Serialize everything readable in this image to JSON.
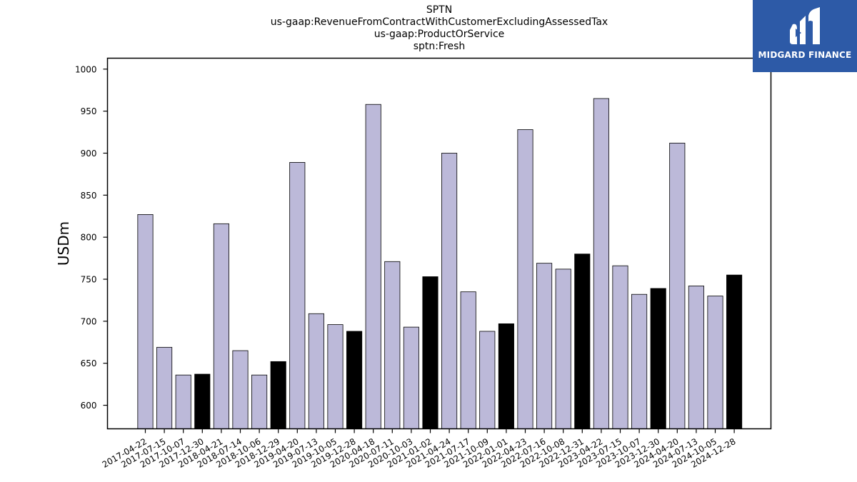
{
  "titles": {
    "line1": "SPTN",
    "line2": "us-gaap:RevenueFromContractWithCustomerExcludingAssessedTax",
    "line3": "us-gaap:ProductOrService",
    "line4": "sptn:Fresh"
  },
  "logo": {
    "text": "MIDGARD FINANCE",
    "background": "#2d5aa7"
  },
  "chart_data": {
    "type": "bar",
    "title": "SPTN",
    "xlabel": "",
    "ylabel": "USDm",
    "ylim": [
      572,
      1013
    ],
    "yticks": [
      600,
      650,
      700,
      750,
      800,
      850,
      900,
      950,
      1000
    ],
    "grid": false,
    "colors": {
      "quarter": "#bcb9d9",
      "fiscal_year_end": "#000000",
      "edge": "#000000"
    },
    "categories": [
      "2017-04-22",
      "2017-07-15",
      "2017-10-07",
      "2017-12-30",
      "2018-04-21",
      "2018-07-14",
      "2018-10-06",
      "2018-12-29",
      "2019-04-20",
      "2019-07-13",
      "2019-10-05",
      "2019-12-28",
      "2020-04-18",
      "2020-07-11",
      "2020-10-03",
      "2021-01-02",
      "2021-04-24",
      "2021-07-17",
      "2021-10-09",
      "2022-01-01",
      "2022-04-23",
      "2022-07-16",
      "2022-10-08",
      "2022-12-31",
      "2023-04-22",
      "2023-07-15",
      "2023-10-07",
      "2023-12-30",
      "2024-04-20",
      "2024-07-13",
      "2024-10-05",
      "2024-12-28"
    ],
    "values": [
      827,
      669,
      636,
      637,
      816,
      665,
      636,
      652,
      889,
      709,
      696,
      688,
      958,
      771,
      693,
      753,
      900,
      735,
      688,
      697,
      928,
      769,
      762,
      780,
      965,
      766,
      732,
      739,
      912,
      742,
      730,
      755
    ],
    "highlight": [
      false,
      false,
      false,
      true,
      false,
      false,
      false,
      true,
      false,
      false,
      false,
      true,
      false,
      false,
      false,
      true,
      false,
      false,
      false,
      true,
      false,
      false,
      false,
      true,
      false,
      false,
      false,
      true,
      false,
      false,
      false,
      true
    ]
  }
}
